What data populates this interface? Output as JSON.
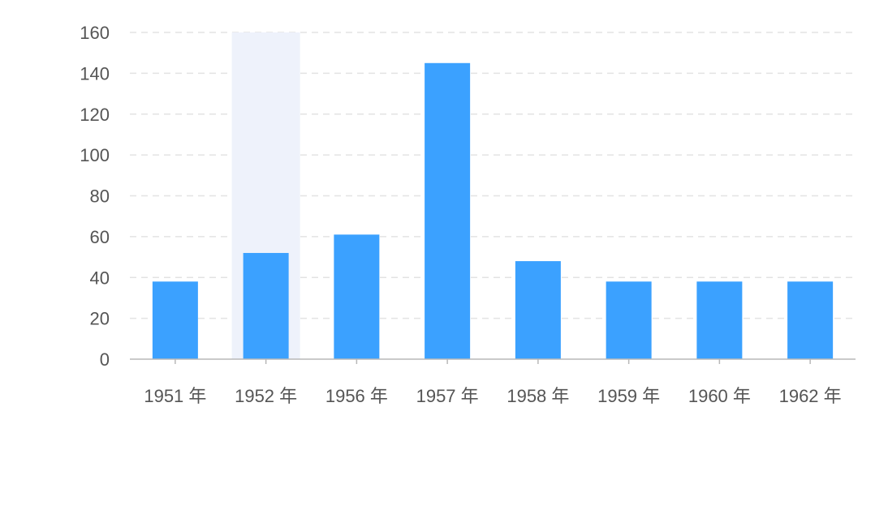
{
  "chart_data": {
    "type": "bar",
    "categories": [
      "1951 年",
      "1952 年",
      "1956 年",
      "1957 年",
      "1958 年",
      "1959 年",
      "1960 年",
      "1962 年"
    ],
    "values": [
      38,
      52,
      61,
      145,
      48,
      38,
      38,
      38
    ],
    "ylim": [
      0,
      160
    ],
    "yticks": [
      0,
      20,
      40,
      60,
      80,
      100,
      120,
      140,
      160
    ],
    "highlighted_category": "1952 年",
    "grid": true,
    "legend": "none",
    "colors": {
      "bar": "#3ba1ff",
      "highlight_band": "#eef2fb",
      "grid": "#e3e3e3",
      "axis": "#b8b8b8",
      "label": "#555555"
    }
  }
}
